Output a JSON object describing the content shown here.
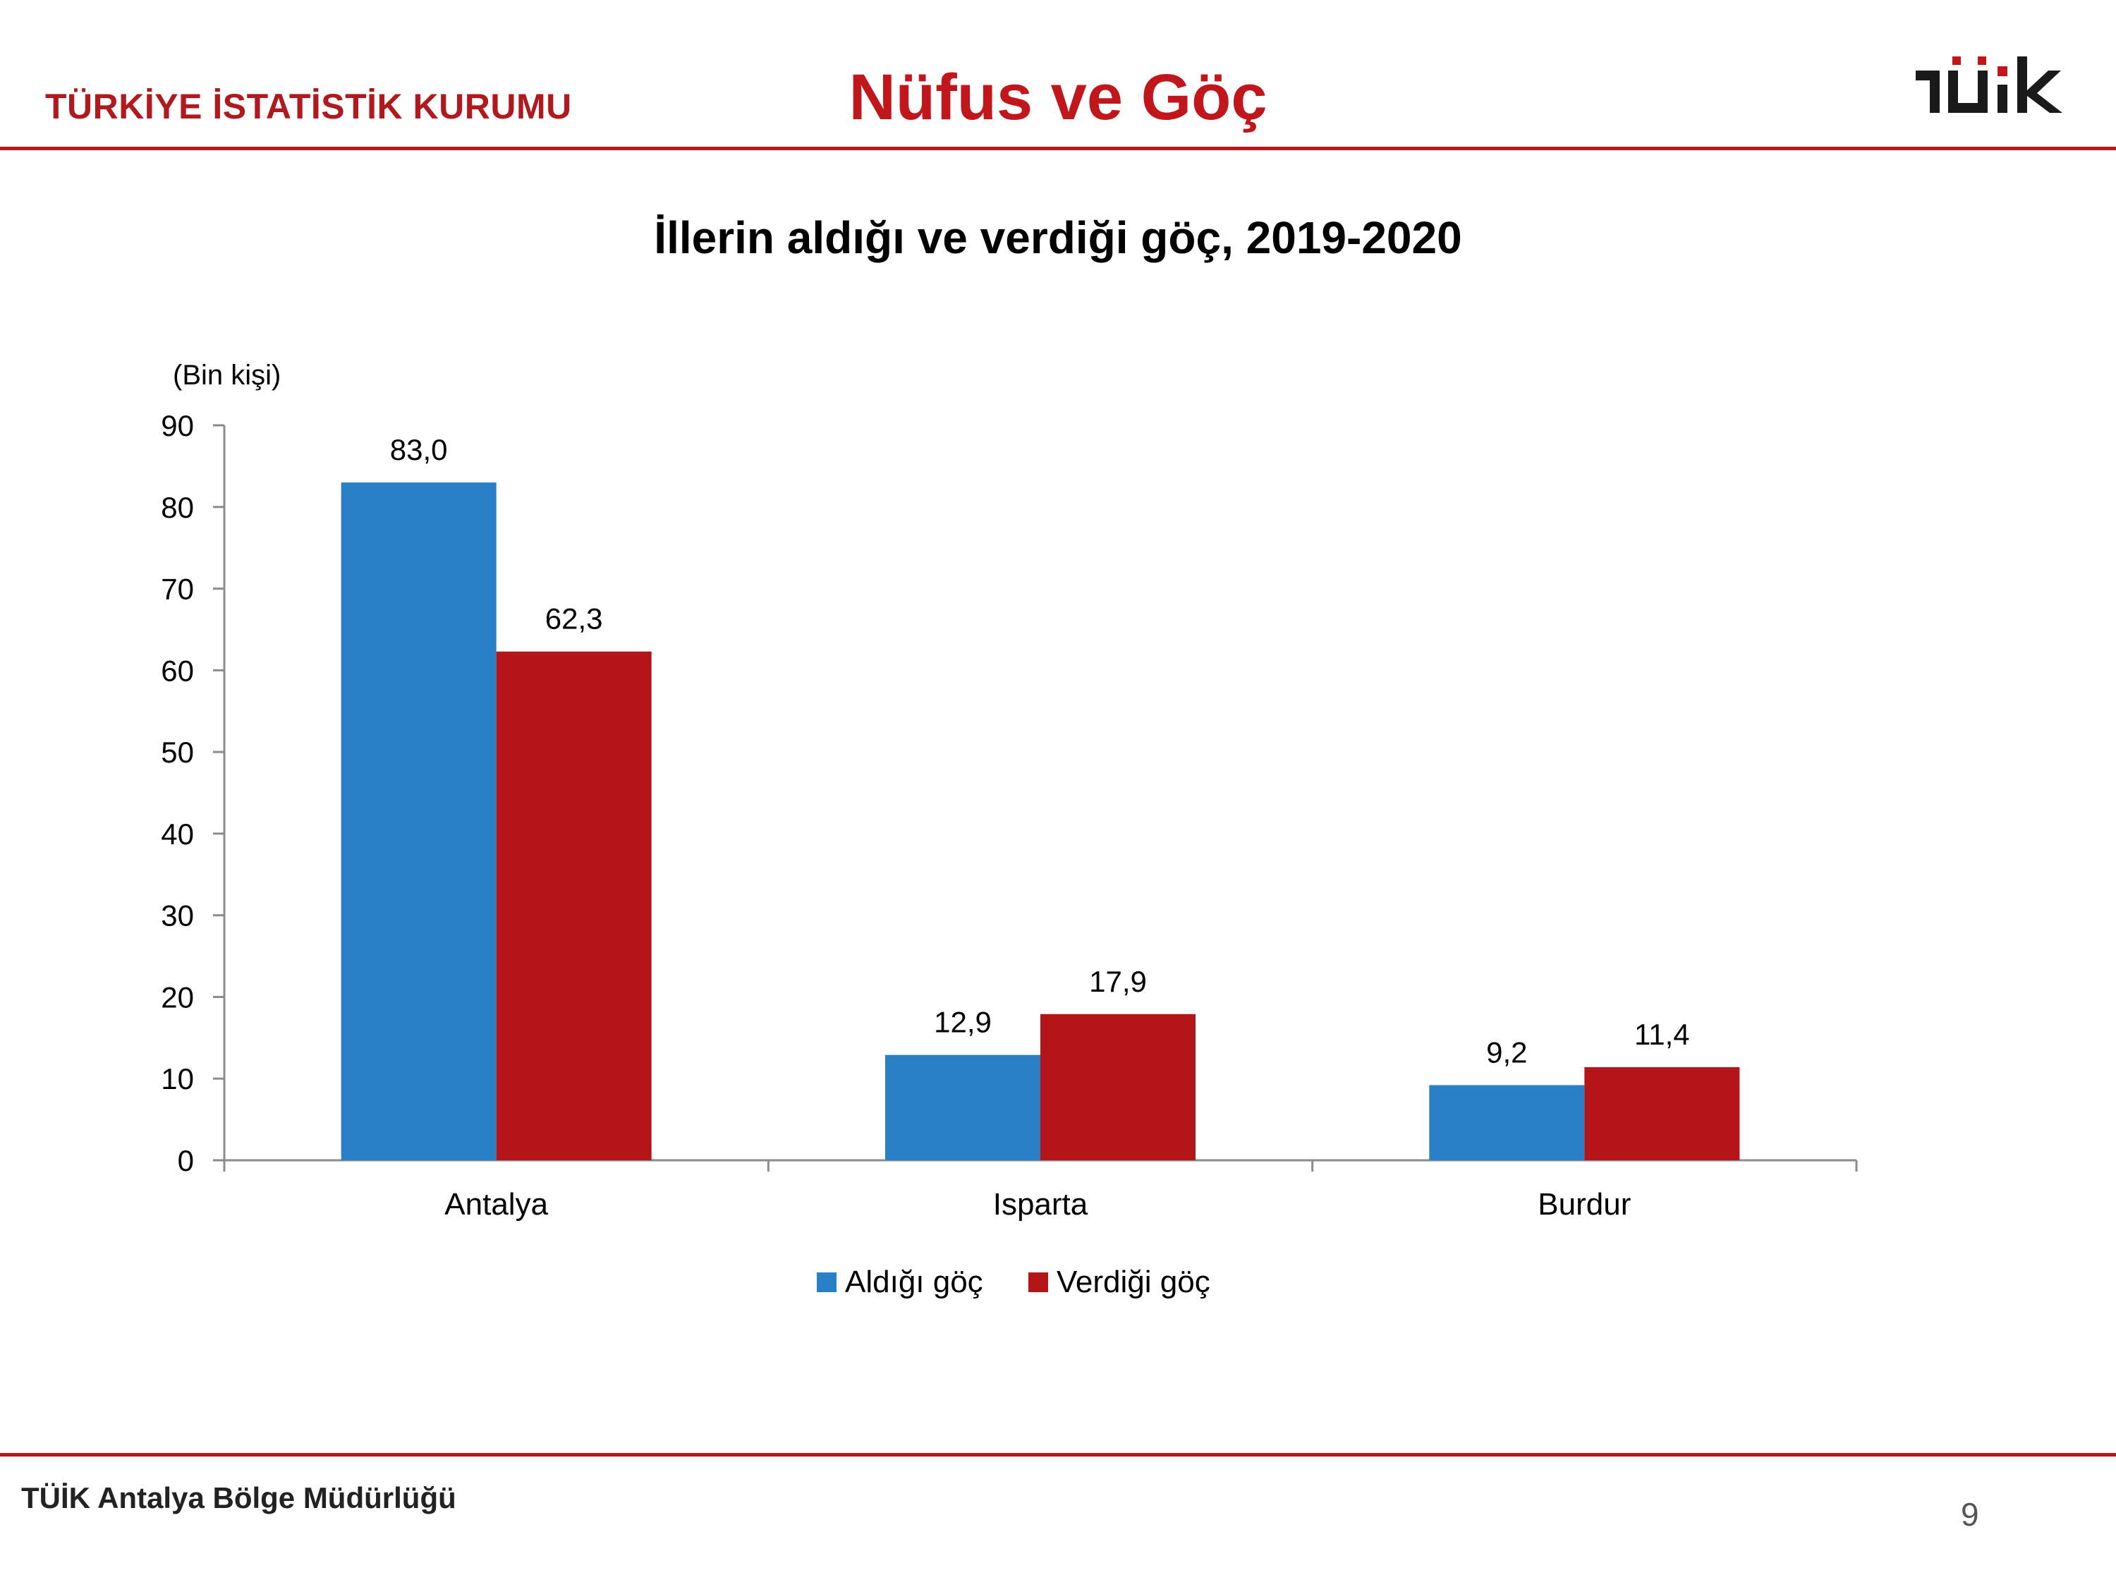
{
  "header": {
    "organization": "TÜRKİYE İSTATİSTİK KURUMU",
    "title": "Nüfus ve Göç",
    "logo_text": "TÜİK"
  },
  "footer": {
    "left_text": "TÜİK Antalya Bölge Müdürlüğü",
    "page_number": "9"
  },
  "colors": {
    "accent_red": "#b01a1e",
    "series_blue": "#2a80c6",
    "series_red": "#b31519"
  },
  "chart_data": {
    "type": "bar",
    "title": "İllerin aldığı ve verdiği göç, 2019-2020",
    "ylabel": "(Bin kişi)",
    "xlabel": "",
    "categories": [
      "Antalya",
      "Isparta",
      "Burdur"
    ],
    "series": [
      {
        "name": "Aldığı göç",
        "values": [
          83.0,
          12.9,
          9.2
        ],
        "labels": [
          "83,0",
          "12,9",
          "9,2"
        ],
        "color": "#2a80c6"
      },
      {
        "name": "Verdiği göç",
        "values": [
          62.3,
          17.9,
          11.4
        ],
        "labels": [
          "62,3",
          "17,9",
          "11,4"
        ],
        "color": "#b31519"
      }
    ],
    "ylim": [
      0,
      90
    ],
    "yticks": [
      "0",
      "10",
      "20",
      "30",
      "40",
      "50",
      "60",
      "70",
      "80",
      "90"
    ],
    "grid": false,
    "legend_position": "bottom"
  }
}
